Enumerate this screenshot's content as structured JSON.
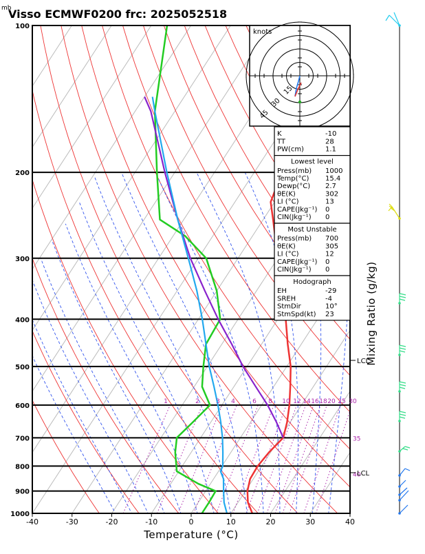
{
  "header": {
    "title": "Visso ECMWF0200  frc: 2025052518",
    "mb_label": "mb"
  },
  "chart_data": {
    "type": "line",
    "title": "Visso ECMWF0200  frc: 2025052518",
    "xlabel": "Temperature (°C)",
    "ylabel_right": "Mixing Ratio (g/kg)",
    "xlim": [
      -40,
      40
    ],
    "ylim": [
      1000,
      100
    ],
    "y_scale": "log",
    "x_ticks": [
      -40,
      -30,
      -20,
      -10,
      0,
      10,
      20,
      30,
      40
    ],
    "pressure_levels": [
      1000,
      900,
      800,
      700,
      600,
      500,
      400,
      300,
      200,
      100
    ],
    "colors": {
      "temperature": "#ee3333",
      "dewpoint": "#22cc22",
      "parcel": "#8822cc",
      "wetbulb": "#22a8ee",
      "isotherm": "#bbbbbb",
      "dry_adiabat": "#ee3333",
      "moist_adiabat": "#3355ee",
      "mixing_ratio": "#aa22aa",
      "wind_barb_top": "#22ccee",
      "wind_barb_upper": "#dddd11",
      "wind_barb_mid": "#33dd88",
      "wind_barb_low": "#2277ee"
    },
    "series": [
      {
        "name": "",
        "role": "temperature",
        "points": [
          [
            1000,
            15.4
          ],
          [
            950,
            12.5
          ],
          [
            900,
            10.5
          ],
          [
            850,
            9.2
          ],
          [
            800,
            9.0
          ],
          [
            750,
            9.6
          ],
          [
            700,
            10.8
          ],
          [
            650,
            9.2
          ],
          [
            600,
            7.0
          ],
          [
            550,
            4.2
          ],
          [
            500,
            1.0
          ],
          [
            450,
            -3.4
          ],
          [
            400,
            -8.0
          ],
          [
            350,
            -13.5
          ],
          [
            300,
            -20.0
          ],
          [
            250,
            -27.5
          ],
          [
            230,
            -31.0
          ],
          [
            200,
            -33.0
          ],
          [
            150,
            -36.5
          ],
          [
            100,
            -42.0
          ]
        ]
      },
      {
        "name": "",
        "role": "dewpoint",
        "points": [
          [
            1000,
            2.7
          ],
          [
            950,
            2.7
          ],
          [
            900,
            2.5
          ],
          [
            870,
            -3.0
          ],
          [
            820,
            -10.5
          ],
          [
            750,
            -14.0
          ],
          [
            700,
            -16.0
          ],
          [
            650,
            -14.5
          ],
          [
            600,
            -13.0
          ],
          [
            550,
            -18.0
          ],
          [
            500,
            -21.0
          ],
          [
            450,
            -24.0
          ],
          [
            400,
            -24.5
          ],
          [
            350,
            -30.0
          ],
          [
            300,
            -38.0
          ],
          [
            270,
            -47.0
          ],
          [
            250,
            -56.0
          ],
          [
            200,
            -64.5
          ],
          [
            150,
            -75.0
          ],
          [
            100,
            -86.0
          ]
        ]
      },
      {
        "name": "",
        "role": "parcel",
        "points": [
          [
            700,
            10.8
          ],
          [
            650,
            6.5
          ],
          [
            600,
            1.5
          ],
          [
            550,
            -4.5
          ],
          [
            500,
            -11.0
          ],
          [
            450,
            -17.5
          ],
          [
            400,
            -25.0
          ],
          [
            350,
            -33.0
          ],
          [
            300,
            -42.0
          ],
          [
            250,
            -51.5
          ],
          [
            200,
            -62.5
          ],
          [
            150,
            -76.0
          ],
          [
            140,
            -80.0
          ]
        ]
      },
      {
        "name": "",
        "role": "wetbulb",
        "points": [
          [
            1000,
            9.0
          ],
          [
            950,
            6.5
          ],
          [
            900,
            4.5
          ],
          [
            850,
            2.5
          ],
          [
            820,
            0.5
          ],
          [
            800,
            0.2
          ],
          [
            750,
            -2.0
          ],
          [
            700,
            -4.5
          ],
          [
            650,
            -7.5
          ],
          [
            600,
            -11.0
          ],
          [
            550,
            -15.0
          ],
          [
            500,
            -19.5
          ],
          [
            450,
            -24.0
          ],
          [
            400,
            -29.0
          ],
          [
            350,
            -35.0
          ],
          [
            300,
            -42.5
          ],
          [
            250,
            -51.5
          ],
          [
            200,
            -62.0
          ],
          [
            150,
            -75.0
          ],
          [
            140,
            -78.0
          ]
        ]
      }
    ],
    "mixing_ratio_labels": [
      "1",
      "2",
      "3",
      "4",
      "6",
      "8",
      "10",
      "12",
      "14",
      "16",
      "18",
      "20",
      "25",
      "30"
    ],
    "theta_labels": [
      "35",
      "40"
    ],
    "annotations": {
      "lcl_upper": "LCL",
      "lcl_lower": "LCL"
    },
    "hodograph": {
      "units": "knots",
      "rings": [
        "15",
        "30",
        "45"
      ]
    },
    "indices": {
      "general": [
        {
          "label": "K",
          "value": "-10"
        },
        {
          "label": "TT",
          "value": "28"
        },
        {
          "label": "PW(cm)",
          "value": "1.1"
        }
      ],
      "lowest_level": {
        "heading": "Lowest level",
        "rows": [
          {
            "label": "Press(mb)",
            "value": "1000"
          },
          {
            "label": "Temp(°C)",
            "value": "15.4"
          },
          {
            "label": "Dewp(°C)",
            "value": "2.7"
          },
          {
            "label": "θE(K)",
            "value": "302"
          },
          {
            "label": "LI (°C)",
            "value": "13"
          },
          {
            "label": "CAPE(Jkg⁻¹)",
            "value": "0"
          },
          {
            "label": "CIN(Jkg⁻¹)",
            "value": "0"
          }
        ]
      },
      "most_unstable": {
        "heading": "Most Unstable",
        "rows": [
          {
            "label": "Press(mb)",
            "value": "700"
          },
          {
            "label": "θE(K)",
            "value": "305"
          },
          {
            "label": "LI (°C)",
            "value": "12"
          },
          {
            "label": "CAPE(Jkg⁻¹)",
            "value": "0"
          },
          {
            "label": "CIN(Jkg⁻¹)",
            "value": "0"
          }
        ]
      },
      "hodograph_box": {
        "heading": "Hodograph",
        "rows": [
          {
            "label": "EH",
            "value": "-29"
          },
          {
            "label": "SREH",
            "value": "-4"
          },
          {
            "label": "StmDir",
            "value": "10°"
          },
          {
            "label": "StmSpd(kt)",
            "value": "23"
          }
        ]
      }
    }
  }
}
